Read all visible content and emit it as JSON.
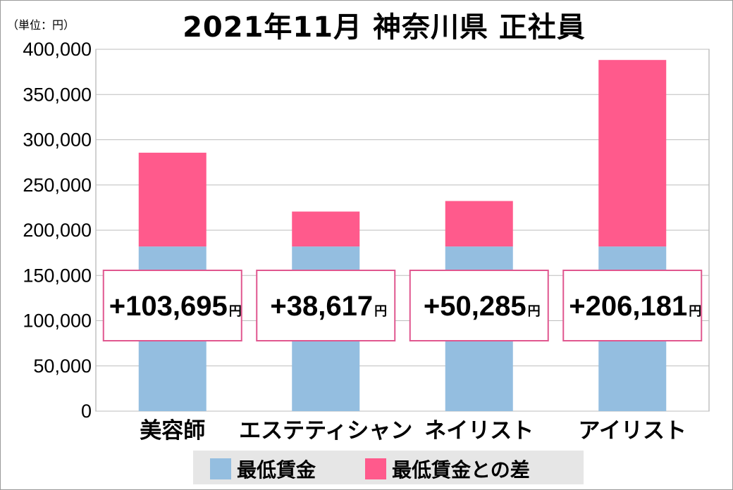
{
  "chart_data": {
    "type": "bar",
    "stacked": true,
    "title": "2021年11月 神奈川県 正社員",
    "unit_label": "（単位：円）",
    "categories": [
      "美容師",
      "エステティシャン",
      "ネイリスト",
      "アイリスト"
    ],
    "series": [
      {
        "name": "最低賃金",
        "color": "#94bee0",
        "values": [
          182000,
          182000,
          182000,
          182000
        ]
      },
      {
        "name": "最低賃金との差",
        "color": "#ff5a8c",
        "values": [
          103695,
          38617,
          50285,
          206181
        ]
      }
    ],
    "data_labels": [
      "+103,695",
      "+38,617",
      "+50,285",
      "+206,181"
    ],
    "data_label_unit": "円",
    "yticks": [
      "0",
      "50,000",
      "100,000",
      "150,000",
      "200,000",
      "250,000",
      "300,000",
      "350,000",
      "400,000"
    ],
    "ylim": [
      0,
      400000
    ],
    "grid": true,
    "legend_position": "bottom"
  }
}
